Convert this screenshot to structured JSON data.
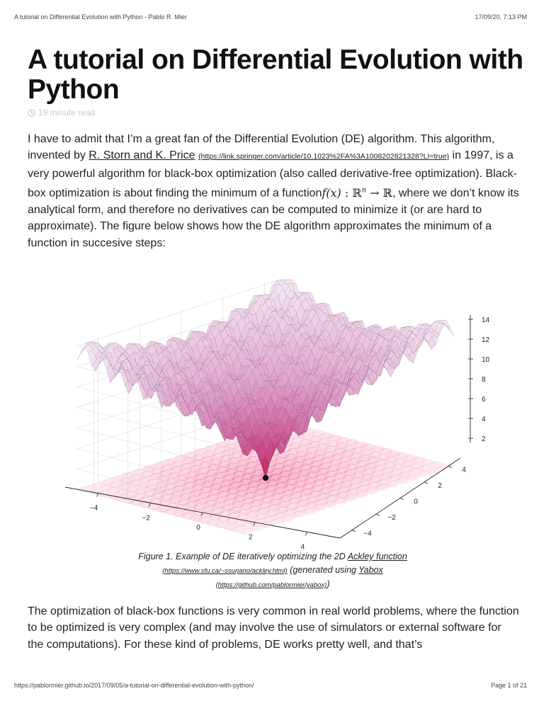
{
  "header": {
    "title": "A tutorial on Differential Evolution with Python - Pablo R. Mier",
    "datetime": "17/09/20, 7:13 PM"
  },
  "footer": {
    "url": "https://pablormier.github.io/2017/09/05/a-tutorial-on-differential-evolution-with-python/",
    "page": "Page 1 of 21"
  },
  "article": {
    "title": "A tutorial on Differential Evolution with Python",
    "read_time": "19 minute read",
    "icons": {
      "read_time": "clock-icon"
    },
    "intro": {
      "t1": "I have to admit that I’m a great fan of the Differential Evolution (DE) algorithm. This algorithm, invented by ",
      "link_text": "R. Storn and K. Price",
      "link_url": "(https://link.springer.com/article/10.1023%2FA%3A1008202821328?LI=true)",
      "t2": " in 1997, is a very powerful algorithm for black-box optimization (also called derivative-free optimization). Black-box optimization is about finding the minimum of a function",
      "math_f": "f(x)",
      "math_colon": " : ",
      "math_R": "ℝ",
      "math_n": "n",
      "math_arrow": " → ",
      "math_R2": "ℝ",
      "t3": ", where we don’t know its analytical form, and therefore no derivatives can be computed to minimize it (or are hard to approximate). The figure below shows how the DE algorithm approximates the minimum of a function in succesive steps:"
    },
    "caption": {
      "t1": "Figure 1. Example of DE iteratively optimizing the 2D ",
      "link1_text": "Ackley function",
      "link1_url": "(https://www.sfu.ca/~ssurjano/ackley.html)",
      "t2": " (generated using ",
      "link2_text": "Yabox",
      "link2_url": "(https://github.com/pablormier/yabox)",
      "t3": ")"
    },
    "para2": "The optimization of black-box functions is very common in real world problems, where the function to be optimized is very complex (and may involve the use of simulators or external software for the computations). For these kind of problems, DE works pretty well, and that’s"
  },
  "chart_data": {
    "type": "surface",
    "title": "",
    "x_ticks": [
      "−4",
      "−2",
      "0",
      "2",
      "4"
    ],
    "y_ticks": [
      "−4",
      "−2",
      "0",
      "2",
      "4"
    ],
    "z_ticks": [
      "2",
      "4",
      "6",
      "8",
      "10",
      "12",
      "14"
    ],
    "xlim": [
      -5,
      5
    ],
    "ylim": [
      -5,
      5
    ],
    "zlim": [
      0,
      14
    ],
    "minimum": {
      "x": 0,
      "y": 0,
      "z": 0
    },
    "grid": true,
    "colors": {
      "surface_low": "#c2185b",
      "surface_high": "#f3e5f5",
      "mesh": "#5a4a55",
      "floor": "#e91e63",
      "point": "#111111"
    }
  }
}
